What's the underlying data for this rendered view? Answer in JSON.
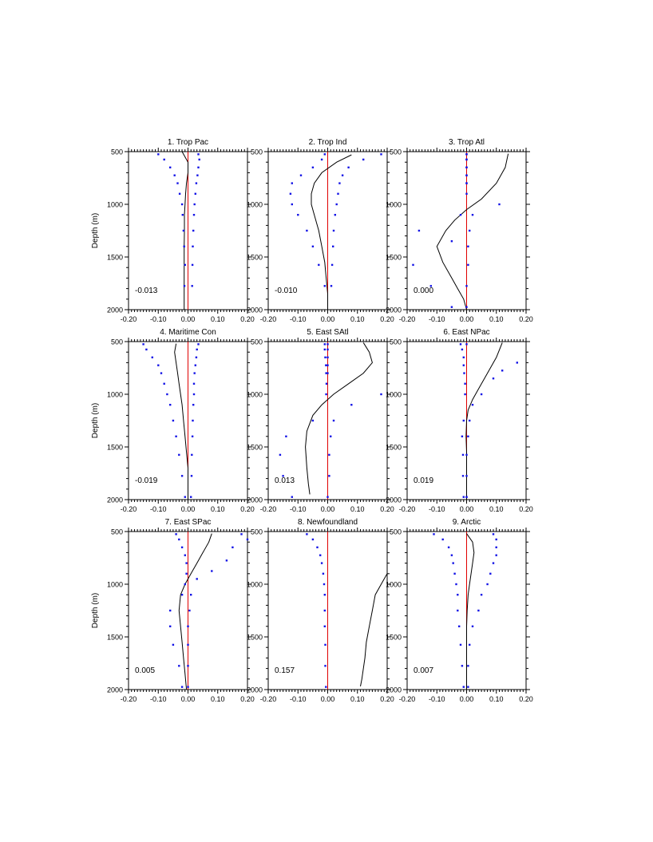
{
  "figure": {
    "ylabel": "Depth (m)"
  },
  "chart_data": [
    {
      "type": "line",
      "title": "1. Trop Pac",
      "ylabel": "Depth (m)",
      "annotation": "-0.013",
      "xlim": [
        -0.2,
        0.2
      ],
      "ylim": [
        2000,
        500
      ],
      "xticks": [
        "-0.20",
        "-0.10",
        "0.00",
        "0.10",
        "0.20"
      ],
      "yticks": [
        "500",
        "1000",
        "1500",
        "2000"
      ],
      "line": {
        "x": [
          -0.02,
          0.0,
          0.0,
          -0.005,
          -0.008,
          -0.01,
          -0.012,
          -0.012,
          -0.013,
          -0.013,
          -0.013,
          -0.013,
          -0.013
        ],
        "depth": [
          500,
          600,
          700,
          800,
          900,
          1000,
          1100,
          1250,
          1400,
          1550,
          1700,
          1850,
          2000
        ]
      },
      "dots_left": {
        "x": [
          -0.1,
          -0.08,
          -0.06,
          -0.045,
          -0.035,
          -0.028,
          -0.02,
          -0.018,
          -0.015,
          -0.013,
          -0.01,
          -0.012
        ],
        "depth": [
          525,
          575,
          650,
          725,
          800,
          900,
          1000,
          1100,
          1250,
          1400,
          1575,
          1775
        ]
      },
      "dots_right": {
        "x": [
          0.035,
          0.038,
          0.035,
          0.032,
          0.028,
          0.025,
          0.022,
          0.02,
          0.018,
          0.016,
          0.015,
          0.014
        ],
        "depth": [
          525,
          575,
          650,
          725,
          800,
          900,
          1000,
          1100,
          1250,
          1400,
          1575,
          1775
        ]
      }
    },
    {
      "type": "line",
      "title": "2. Trop Ind",
      "ylabel": "",
      "annotation": "-0.010",
      "xlim": [
        -0.2,
        0.2
      ],
      "ylim": [
        2000,
        500
      ],
      "xticks": [
        "-0.20",
        "-0.10",
        "0.00",
        "0.10",
        "0.20"
      ],
      "yticks": [
        "500",
        "1000",
        "1500",
        "2000"
      ],
      "line": {
        "x": [
          0.08,
          0.03,
          -0.02,
          -0.045,
          -0.055,
          -0.055,
          -0.045,
          -0.03,
          -0.02,
          -0.01,
          -0.005,
          0.0,
          0.0
        ],
        "depth": [
          530,
          600,
          700,
          800,
          900,
          1000,
          1100,
          1250,
          1400,
          1550,
          1700,
          1850,
          2000
        ]
      },
      "dots_left": {
        "x": [
          -0.01,
          -0.02,
          -0.05,
          -0.09,
          -0.12,
          -0.125,
          -0.12,
          -0.1,
          -0.07,
          -0.05,
          -0.03,
          -0.01
        ],
        "depth": [
          525,
          575,
          650,
          725,
          800,
          900,
          1000,
          1100,
          1250,
          1400,
          1575,
          1775
        ]
      },
      "dots_right": {
        "x": [
          0.18,
          0.12,
          0.07,
          0.05,
          0.04,
          0.035,
          0.03,
          0.025,
          0.02,
          0.018,
          0.015,
          0.012
        ],
        "depth": [
          525,
          575,
          650,
          725,
          800,
          900,
          1000,
          1100,
          1250,
          1400,
          1575,
          1775
        ]
      }
    },
    {
      "type": "line",
      "title": "3. Trop Atl",
      "ylabel": "",
      "annotation": "0.000",
      "xlim": [
        -0.2,
        0.2
      ],
      "ylim": [
        2000,
        500
      ],
      "xticks": [
        "-0.20",
        "-0.10",
        "0.00",
        "0.10",
        "0.20"
      ],
      "yticks": [
        "500",
        "1000",
        "1500",
        "2000"
      ],
      "line": {
        "x": [
          0.14,
          0.13,
          0.1,
          0.05,
          0.0,
          -0.04,
          -0.07,
          -0.1,
          -0.08,
          -0.05,
          -0.03,
          -0.01,
          0.0
        ],
        "depth": [
          520,
          650,
          800,
          950,
          1050,
          1150,
          1250,
          1400,
          1550,
          1700,
          1800,
          1900,
          2000
        ]
      },
      "dots_left": {
        "x": [
          0.0,
          0.0,
          0.0,
          0.0,
          0.0,
          0.0,
          -0.02,
          -0.16,
          -0.05,
          -0.18,
          -0.12,
          -0.05
        ],
        "depth": [
          525,
          575,
          650,
          725,
          800,
          900,
          1100,
          1250,
          1350,
          1575,
          1775,
          1975
        ]
      },
      "dots_right": {
        "x": [
          0.0,
          0.0,
          0.0,
          0.0,
          0.0,
          0.11,
          0.02,
          0.01,
          0.005,
          0.005,
          0.0,
          0.0
        ],
        "depth": [
          525,
          575,
          650,
          725,
          800,
          1000,
          1100,
          1250,
          1400,
          1575,
          1775,
          1975
        ]
      }
    },
    {
      "type": "line",
      "title": "4. Maritime Con",
      "ylabel": "Depth (m)",
      "annotation": "-0.019",
      "xlim": [
        -0.2,
        0.2
      ],
      "ylim": [
        2000,
        500
      ],
      "xticks": [
        "-0.20",
        "-0.10",
        "0.00",
        "0.10",
        "0.20"
      ],
      "yticks": [
        "500",
        "1000",
        "1500",
        "2000"
      ],
      "line": {
        "x": [
          -0.04,
          -0.045,
          -0.04,
          -0.035,
          -0.03,
          -0.025,
          -0.02,
          -0.015,
          -0.01,
          -0.005,
          0.0,
          0.0
        ],
        "depth": [
          520,
          600,
          700,
          800,
          900,
          1000,
          1100,
          1250,
          1400,
          1550,
          1700,
          2000
        ]
      },
      "dots_left": {
        "x": [
          -0.15,
          -0.14,
          -0.12,
          -0.1,
          -0.09,
          -0.08,
          -0.07,
          -0.06,
          -0.05,
          -0.04,
          -0.03,
          -0.02,
          -0.01
        ],
        "depth": [
          525,
          575,
          650,
          725,
          800,
          900,
          1000,
          1100,
          1250,
          1400,
          1575,
          1775,
          1975
        ]
      },
      "dots_right": {
        "x": [
          0.035,
          0.03,
          0.028,
          0.025,
          0.022,
          0.02,
          0.02,
          0.018,
          0.016,
          0.015,
          0.013,
          0.012,
          0.01
        ],
        "depth": [
          525,
          575,
          650,
          725,
          800,
          900,
          1000,
          1100,
          1250,
          1400,
          1575,
          1775,
          1975
        ]
      }
    },
    {
      "type": "line",
      "title": "5. East SAtl",
      "ylabel": "",
      "annotation": "0.013",
      "xlim": [
        -0.2,
        0.2
      ],
      "ylim": [
        2000,
        500
      ],
      "xticks": [
        "-0.20",
        "-0.10",
        "0.00",
        "0.10",
        "0.20"
      ],
      "yticks": [
        "500",
        "1000",
        "1500",
        "2000"
      ],
      "line": {
        "x": [
          0.12,
          0.14,
          0.15,
          0.12,
          0.07,
          0.02,
          -0.02,
          -0.05,
          -0.07,
          -0.075,
          -0.07,
          -0.065,
          -0.06
        ],
        "depth": [
          510,
          600,
          700,
          800,
          900,
          1000,
          1100,
          1200,
          1350,
          1500,
          1700,
          1850,
          1950
        ]
      },
      "dots_left": {
        "x": [
          -0.01,
          -0.01,
          -0.008,
          -0.006,
          -0.005,
          -0.004,
          -0.005,
          -0.05,
          -0.14,
          -0.16,
          -0.15,
          -0.12
        ],
        "depth": [
          525,
          575,
          650,
          725,
          800,
          900,
          1000,
          1250,
          1400,
          1575,
          1775,
          1975
        ]
      },
      "dots_right": {
        "x": [
          0.0,
          0.0,
          0.0,
          0.0,
          0.0,
          0.18,
          0.08,
          0.02,
          0.01,
          0.005,
          0.005,
          0.0
        ],
        "depth": [
          525,
          575,
          650,
          725,
          800,
          1000,
          1100,
          1250,
          1400,
          1575,
          1775,
          1975
        ]
      }
    },
    {
      "type": "line",
      "title": "6. East NPac",
      "ylabel": "",
      "annotation": "0.019",
      "xlim": [
        -0.2,
        0.2
      ],
      "ylim": [
        2000,
        500
      ],
      "xticks": [
        "-0.20",
        "-0.10",
        "0.00",
        "0.10",
        "0.20"
      ],
      "yticks": [
        "500",
        "1000",
        "1500",
        "2000"
      ],
      "line": {
        "x": [
          0.12,
          0.1,
          0.07,
          0.04,
          0.02,
          0.005,
          0.0,
          -0.002,
          0.0,
          0.0,
          0.0,
          0.0
        ],
        "depth": [
          510,
          650,
          800,
          950,
          1050,
          1150,
          1250,
          1400,
          1550,
          1700,
          1850,
          2000
        ]
      },
      "dots_left": {
        "x": [
          -0.02,
          -0.015,
          -0.01,
          -0.01,
          -0.008,
          -0.005,
          -0.005,
          -0.01,
          -0.015,
          -0.012,
          -0.012,
          -0.01
        ],
        "depth": [
          525,
          575,
          650,
          725,
          800,
          900,
          1000,
          1250,
          1400,
          1575,
          1775,
          1975
        ]
      },
      "dots_right": {
        "x": [
          0.0,
          0.17,
          0.12,
          0.09,
          0.05,
          0.02,
          0.01,
          0.005,
          0.0,
          0.0,
          0.0,
          0.0
        ],
        "depth": [
          525,
          700,
          775,
          850,
          1000,
          1100,
          1250,
          1400,
          1575,
          1775,
          1975,
          1975
        ]
      }
    },
    {
      "type": "line",
      "title": "7. East SPac",
      "ylabel": "Depth (m)",
      "annotation": "0.005",
      "xlim": [
        -0.2,
        0.2
      ],
      "ylim": [
        2000,
        500
      ],
      "xticks": [
        "-0.20",
        "-0.10",
        "0.00",
        "0.10",
        "0.20"
      ],
      "yticks": [
        "500",
        "1000",
        "1500",
        "2000"
      ],
      "line": {
        "x": [
          0.08,
          0.07,
          0.05,
          0.03,
          0.01,
          -0.01,
          -0.025,
          -0.03,
          -0.025,
          -0.02,
          -0.015,
          -0.01,
          -0.005
        ],
        "depth": [
          520,
          600,
          700,
          800,
          900,
          1000,
          1100,
          1250,
          1400,
          1550,
          1700,
          1850,
          2000
        ]
      },
      "dots_left": {
        "x": [
          -0.04,
          -0.03,
          -0.02,
          -0.01,
          -0.005,
          -0.005,
          -0.01,
          -0.02,
          -0.06,
          -0.06,
          -0.05,
          -0.03,
          -0.02
        ],
        "depth": [
          525,
          575,
          650,
          725,
          800,
          900,
          1000,
          1100,
          1250,
          1400,
          1575,
          1775,
          1975
        ]
      },
      "dots_right": {
        "x": [
          0.18,
          0.2,
          0.15,
          0.13,
          0.08,
          0.03,
          0.01,
          0.005,
          0.0,
          0.0,
          0.0,
          0.0
        ],
        "depth": [
          525,
          575,
          650,
          775,
          875,
          950,
          1100,
          1250,
          1400,
          1575,
          1775,
          1975
        ]
      }
    },
    {
      "type": "line",
      "title": "8. Newfoundland",
      "ylabel": "",
      "annotation": "0.157",
      "xlim": [
        -0.2,
        0.2
      ],
      "ylim": [
        2000,
        500
      ],
      "xticks": [
        "-0.20",
        "-0.10",
        "0.00",
        "0.10",
        "0.20"
      ],
      "yticks": [
        "500",
        "1000",
        "1500",
        "2000"
      ],
      "line": {
        "x": [
          0.2,
          0.18,
          0.16,
          0.15,
          0.14,
          0.13,
          0.125,
          0.12,
          0.115,
          0.11
        ],
        "depth": [
          900,
          1000,
          1100,
          1250,
          1400,
          1550,
          1700,
          1800,
          1900,
          1970
        ]
      },
      "dots_left": {
        "x": [
          -0.07,
          -0.05,
          -0.035,
          -0.025,
          -0.02,
          -0.015,
          -0.012,
          -0.01,
          -0.01,
          -0.01,
          -0.008,
          -0.008,
          -0.006
        ],
        "depth": [
          525,
          575,
          650,
          725,
          800,
          900,
          1000,
          1100,
          1250,
          1400,
          1575,
          1775,
          1975
        ]
      },
      "dots_right": {
        "x": [],
        "depth": []
      }
    },
    {
      "type": "line",
      "title": "9. Arctic",
      "ylabel": "",
      "annotation": "0.007",
      "xlim": [
        -0.2,
        0.2
      ],
      "ylim": [
        2000,
        500
      ],
      "xticks": [
        "-0.20",
        "-0.10",
        "0.00",
        "0.10",
        "0.20"
      ],
      "yticks": [
        "500",
        "1000",
        "1500",
        "2000"
      ],
      "line": {
        "x": [
          0.0,
          0.02,
          0.025,
          0.02,
          0.015,
          0.01,
          0.005,
          0.002,
          0.0,
          0.0,
          0.0,
          0.0
        ],
        "depth": [
          520,
          600,
          700,
          800,
          900,
          1000,
          1100,
          1250,
          1400,
          1550,
          1700,
          2000
        ]
      },
      "dots_left": {
        "x": [
          -0.11,
          -0.08,
          -0.06,
          -0.05,
          -0.045,
          -0.04,
          -0.035,
          -0.03,
          -0.03,
          -0.025,
          -0.02,
          -0.015,
          -0.01
        ],
        "depth": [
          525,
          575,
          650,
          725,
          800,
          900,
          1000,
          1100,
          1250,
          1400,
          1575,
          1775,
          1975
        ]
      },
      "dots_right": {
        "x": [
          0.09,
          0.1,
          0.1,
          0.1,
          0.09,
          0.08,
          0.07,
          0.05,
          0.04,
          0.02,
          0.01,
          0.005,
          0.005
        ],
        "depth": [
          525,
          575,
          650,
          725,
          800,
          900,
          1000,
          1100,
          1250,
          1400,
          1575,
          1775,
          1975
        ]
      }
    }
  ]
}
